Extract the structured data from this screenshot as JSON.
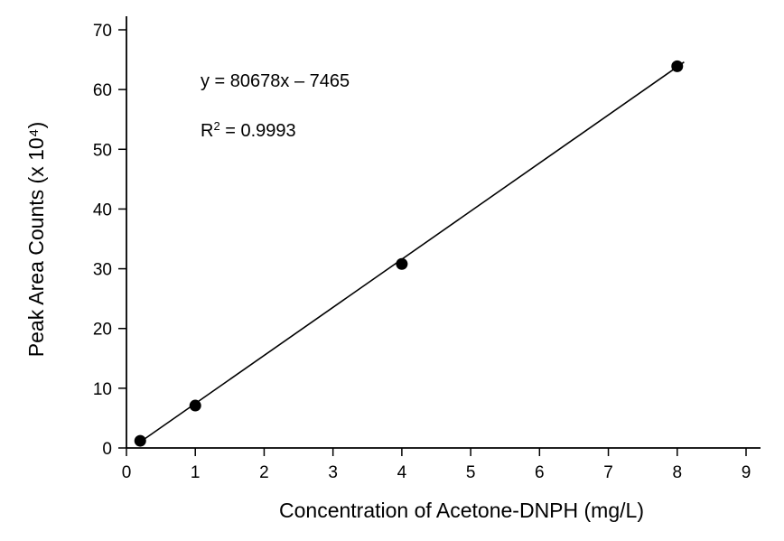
{
  "chart_data": {
    "type": "scatter",
    "title": "",
    "xlabel": "Concentration of Acetone-DNPH (mg/L)",
    "ylabel": "Peak Area Counts (x 10⁴)",
    "xlim": [
      0,
      9
    ],
    "ylim": [
      0,
      70
    ],
    "x_ticks": [
      "0",
      "1",
      "2",
      "3",
      "4",
      "5",
      "6",
      "7",
      "8",
      "9"
    ],
    "y_ticks": [
      "0",
      "10",
      "20",
      "30",
      "40",
      "50",
      "60",
      "70"
    ],
    "grid": false,
    "legend": "none",
    "series": [
      {
        "points": [
          {
            "x": 0.2,
            "y": 1.2
          },
          {
            "x": 1.0,
            "y": 7.1
          },
          {
            "x": 4.0,
            "y": 30.8
          },
          {
            "x": 8.0,
            "y": 63.9
          }
        ]
      }
    ],
    "fit_line": {
      "x_start": 0.2,
      "y_start": 1.0,
      "x_end": 8.1,
      "y_end": 64.6
    },
    "annotations": {
      "equation": "y = 80678x – 7465",
      "r_squared_prefix": "R",
      "r_squared_exponent": "2",
      "r_squared_value": " = 0.9993"
    },
    "colors": {
      "axis": "#000000",
      "marker": "#000000",
      "line": "#000000"
    }
  }
}
